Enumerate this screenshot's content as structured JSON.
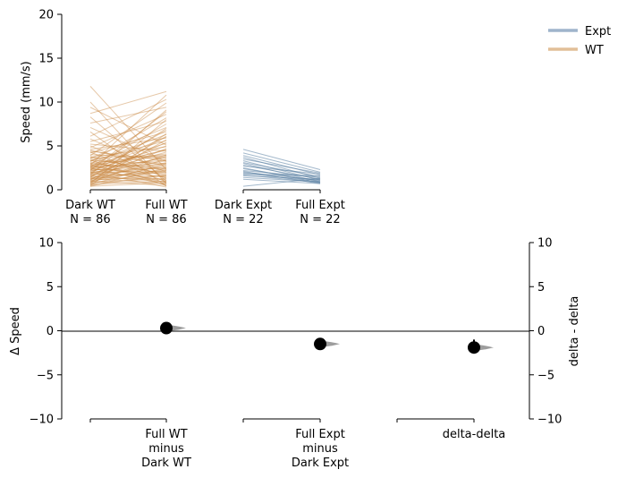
{
  "chart_data": [
    {
      "type": "line",
      "subtype": "paired-slopegraph",
      "ylabel": "Speed (mm/s)",
      "ylim": [
        0,
        20
      ],
      "yticks": [
        0,
        5,
        10,
        15,
        20
      ],
      "groups": [
        {
          "label": "Dark WT",
          "n_label": "N = 86"
        },
        {
          "label": "Full WT",
          "n_label": "N = 86"
        },
        {
          "label": "Dark Expt",
          "n_label": "N = 22"
        },
        {
          "label": "Full Expt",
          "n_label": "N = 22"
        }
      ],
      "legend": {
        "placement": "top-right",
        "entries": [
          {
            "name": "Expt",
            "color": "#9fb4cc"
          },
          {
            "name": "WT",
            "color": "#e2bf98"
          }
        ]
      },
      "series": [
        {
          "name": "WT",
          "color": "#c8843e",
          "pairs": [
            [
              11.8,
              2.3
            ],
            [
              10.0,
              0.7
            ],
            [
              9.4,
              5.1
            ],
            [
              8.7,
              11.2
            ],
            [
              8.3,
              1.0
            ],
            [
              7.6,
              9.4
            ],
            [
              7.1,
              3.2
            ],
            [
              6.6,
              0.4
            ],
            [
              6.1,
              10.3
            ],
            [
              5.8,
              2.0
            ],
            [
              5.5,
              7.8
            ],
            [
              5.2,
              4.4
            ],
            [
              5.0,
              1.3
            ],
            [
              4.8,
              8.6
            ],
            [
              4.6,
              5.9
            ],
            [
              4.5,
              2.7
            ],
            [
              4.3,
              0.9
            ],
            [
              4.2,
              6.6
            ],
            [
              4.0,
              3.6
            ],
            [
              3.9,
              9.9
            ],
            [
              3.8,
              1.6
            ],
            [
              3.7,
              4.9
            ],
            [
              3.6,
              7.1
            ],
            [
              3.5,
              2.2
            ],
            [
              3.4,
              0.5
            ],
            [
              3.3,
              5.6
            ],
            [
              3.3,
              3.0
            ],
            [
              3.2,
              8.2
            ],
            [
              3.1,
              1.9
            ],
            [
              3.0,
              4.1
            ],
            [
              3.0,
              6.3
            ],
            [
              2.9,
              2.5
            ],
            [
              2.9,
              0.8
            ],
            [
              2.8,
              3.9
            ],
            [
              2.8,
              10.8
            ],
            [
              2.7,
              1.4
            ],
            [
              2.7,
              5.3
            ],
            [
              2.6,
              2.9
            ],
            [
              2.6,
              7.5
            ],
            [
              2.5,
              0.6
            ],
            [
              2.5,
              3.4
            ],
            [
              2.4,
              6.0
            ],
            [
              2.4,
              1.8
            ],
            [
              2.3,
              4.6
            ],
            [
              2.3,
              2.4
            ],
            [
              2.2,
              8.9
            ],
            [
              2.2,
              1.1
            ],
            [
              2.1,
              3.7
            ],
            [
              2.1,
              5.0
            ],
            [
              2.0,
              2.1
            ],
            [
              2.0,
              0.3
            ],
            [
              1.9,
              6.8
            ],
            [
              1.9,
              3.3
            ],
            [
              1.8,
              1.5
            ],
            [
              1.8,
              4.3
            ],
            [
              1.7,
              2.6
            ],
            [
              1.7,
              9.1
            ],
            [
              1.6,
              0.9
            ],
            [
              1.6,
              3.8
            ],
            [
              1.5,
              5.4
            ],
            [
              1.5,
              2.0
            ],
            [
              1.4,
              1.2
            ],
            [
              1.4,
              7.0
            ],
            [
              1.3,
              3.1
            ],
            [
              1.3,
              0.7
            ],
            [
              1.2,
              4.7
            ],
            [
              1.2,
              2.3
            ],
            [
              1.1,
              6.1
            ],
            [
              1.1,
              1.6
            ],
            [
              1.0,
              3.5
            ],
            [
              1.0,
              0.5
            ],
            [
              0.9,
              2.8
            ],
            [
              0.9,
              5.7
            ],
            [
              0.8,
              1.3
            ],
            [
              0.8,
              4.0
            ],
            [
              0.7,
              2.2
            ],
            [
              0.7,
              8.0
            ],
            [
              0.6,
              1.0
            ],
            [
              0.6,
              3.0
            ],
            [
              0.5,
              6.4
            ],
            [
              0.5,
              1.7
            ],
            [
              0.4,
              2.5
            ],
            [
              0.4,
              0.8
            ],
            [
              3.6,
              3.9
            ],
            [
              4.4,
              3.3
            ],
            [
              2.6,
              4.5
            ]
          ]
        },
        {
          "name": "Expt",
          "color": "#5a7fa3",
          "pairs": [
            [
              4.6,
              2.3
            ],
            [
              4.2,
              2.0
            ],
            [
              3.9,
              1.7
            ],
            [
              3.7,
              1.3
            ],
            [
              3.5,
              1.9
            ],
            [
              3.3,
              1.1
            ],
            [
              3.1,
              1.5
            ],
            [
              3.0,
              0.9
            ],
            [
              2.8,
              1.2
            ],
            [
              2.7,
              1.8
            ],
            [
              2.5,
              0.8
            ],
            [
              2.4,
              1.0
            ],
            [
              2.2,
              1.4
            ],
            [
              2.1,
              0.7
            ],
            [
              2.0,
              1.1
            ],
            [
              1.9,
              0.9
            ],
            [
              1.8,
              1.6
            ],
            [
              1.7,
              0.8
            ],
            [
              1.6,
              1.2
            ],
            [
              1.4,
              0.9
            ],
            [
              1.2,
              0.7
            ],
            [
              0.4,
              1.3
            ]
          ]
        }
      ]
    },
    {
      "type": "scatter",
      "subtype": "effect-size-estimation",
      "ylabel": "Δ Speed",
      "ylabel_right": "delta - delta",
      "ylim": [
        -10,
        10
      ],
      "yticks": [
        -10,
        -5,
        0,
        5,
        10
      ],
      "categories": [
        "Full WT\nminus\nDark WT",
        "Full Expt\nminus\nDark Expt",
        "delta-delta"
      ],
      "values": [
        0.3,
        -1.5,
        -1.9
      ],
      "ci": [
        [
          0.1,
          0.5
        ],
        [
          -1.7,
          -1.3
        ],
        [
          -2.4,
          -1.0
        ]
      ],
      "bootstrap_color": "#8c8c8c"
    }
  ]
}
